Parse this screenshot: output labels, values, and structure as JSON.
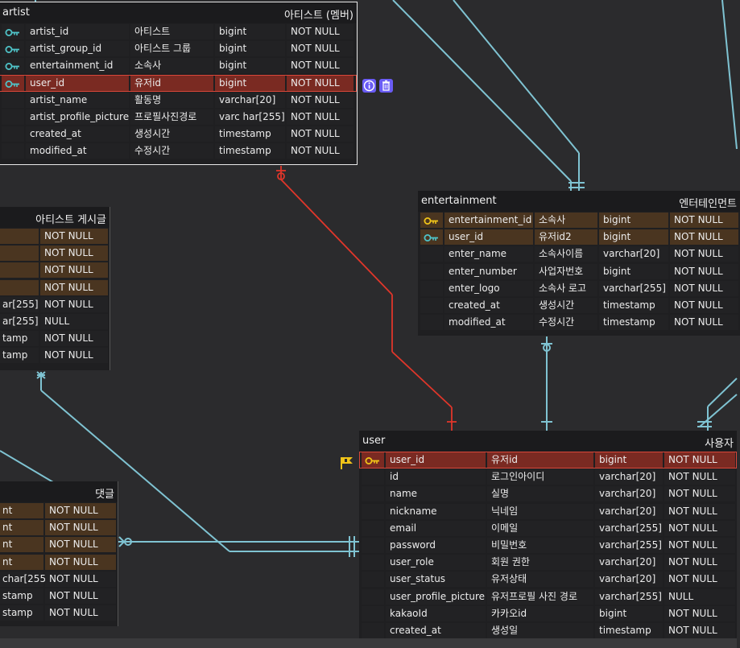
{
  "colors": {
    "background": "#2b2b2d",
    "relation_line": "#7fc3d2",
    "selected_relation_line": "#e0362a",
    "primary_key_row": "#4a3520",
    "selected_row": "#7a2a22",
    "key_icon_gold": "#f0c419",
    "key_icon_teal": "#4fc3c8",
    "tool_icon": "#6a5cf5"
  },
  "tables": {
    "artist": {
      "name": "artist",
      "alias": "아티스트 (멤버)",
      "rows": [
        {
          "col": "artist_id",
          "comment": "아티스트",
          "type": "bigint",
          "null": "NOT NULL",
          "key": "teal"
        },
        {
          "col": "artist_group_id",
          "comment": "아티스트 그룹",
          "type": "bigint",
          "null": "NOT NULL",
          "key": "teal"
        },
        {
          "col": "entertainment_id",
          "comment": "소속사",
          "type": "bigint",
          "null": "NOT NULL",
          "key": "teal"
        },
        {
          "col": "user_id",
          "comment": "유저id",
          "type": "bigint",
          "null": "NOT NULL",
          "key": "teal",
          "selected": true
        },
        {
          "col": "artist_name",
          "comment": "활동명",
          "type": "varchar[20]",
          "null": "NOT NULL"
        },
        {
          "col": "artist_profile_picture",
          "comment": "프로필사진경로",
          "type": "varc har[255]",
          "null": "NOT NULL"
        },
        {
          "col": "created_at",
          "comment": "생성시간",
          "type": "timestamp",
          "null": "NOT NULL"
        },
        {
          "col": "modified_at",
          "comment": "수정시간",
          "type": "timestamp",
          "null": "NOT NULL"
        }
      ]
    },
    "artist_post": {
      "alias": "아티스트 게시글",
      "rows": [
        {
          "type": "",
          "null": "NOT NULL",
          "pk": true
        },
        {
          "type": "",
          "null": "NOT NULL",
          "pk": true
        },
        {
          "type": "",
          "null": "NOT NULL",
          "pk": true
        },
        {
          "type": "",
          "null": "NOT NULL",
          "pk": true
        },
        {
          "type": "ar[255]",
          "null": "NOT NULL"
        },
        {
          "type": "ar[255]",
          "null": "NULL"
        },
        {
          "type": "tamp",
          "null": "NOT NULL"
        },
        {
          "type": "tamp",
          "null": "NOT NULL"
        }
      ]
    },
    "comment": {
      "alias": "댓글",
      "rows": [
        {
          "type": "nt",
          "null": "NOT NULL",
          "pk": true
        },
        {
          "type": "nt",
          "null": "NOT NULL",
          "pk": true
        },
        {
          "type": "nt",
          "null": "NOT NULL",
          "pk": true
        },
        {
          "type": "nt",
          "null": "NOT NULL",
          "pk": true
        },
        {
          "type": "char[255]",
          "null": "NOT NULL"
        },
        {
          "type": "stamp",
          "null": "NOT NULL"
        },
        {
          "type": "stamp",
          "null": "NOT NULL"
        }
      ]
    },
    "entertainment": {
      "name": "entertainment",
      "alias": "엔터테인먼트",
      "rows": [
        {
          "col": "entertainment_id",
          "comment": "소속사",
          "type": "bigint",
          "null": "NOT NULL",
          "key": "gold",
          "pk": true
        },
        {
          "col": "user_id",
          "comment": "유저id2",
          "type": "bigint",
          "null": "NOT NULL",
          "key": "teal",
          "pk": true
        },
        {
          "col": "enter_name",
          "comment": "소속사이름",
          "type": "varchar[20]",
          "null": "NOT NULL"
        },
        {
          "col": "enter_number",
          "comment": "사업자번호",
          "type": "bigint",
          "null": "NOT NULL"
        },
        {
          "col": "enter_logo",
          "comment": "소속사 로고",
          "type": "varchar[255]",
          "null": "NOT NULL"
        },
        {
          "col": "created_at",
          "comment": "생성시간",
          "type": "timestamp",
          "null": "NOT NULL"
        },
        {
          "col": "modified_at",
          "comment": "수정시간",
          "type": "timestamp",
          "null": "NOT NULL"
        }
      ]
    },
    "user": {
      "name": "user",
      "alias": "사용자",
      "rows": [
        {
          "col": "user_id",
          "comment": "유저id",
          "type": "bigint",
          "null": "NOT NULL",
          "key": "gold",
          "selected": true
        },
        {
          "col": "id",
          "comment": "로그인아이디",
          "type": "varchar[20]",
          "null": "NOT NULL"
        },
        {
          "col": "name",
          "comment": "실명",
          "type": "varchar[20]",
          "null": "NOT NULL"
        },
        {
          "col": "nickname",
          "comment": "닉네임",
          "type": "varchar[20]",
          "null": "NOT NULL"
        },
        {
          "col": "email",
          "comment": "이메일",
          "type": "varchar[255]",
          "null": "NOT NULL"
        },
        {
          "col": "password",
          "comment": "비밀번호",
          "type": "varchar[255]",
          "null": "NOT NULL"
        },
        {
          "col": "user_role",
          "comment": "회원 권한",
          "type": "varchar[20]",
          "null": "NOT NULL"
        },
        {
          "col": "user_status",
          "comment": "유저상태",
          "type": "varchar[20]",
          "null": "NOT NULL"
        },
        {
          "col": "user_profile_picture",
          "comment": "유저프로필 사진 경로",
          "type": "varchar[255]",
          "null": "NULL"
        },
        {
          "col": "kakaoId",
          "comment": "카카오id",
          "type": "bigint",
          "null": "NOT NULL"
        },
        {
          "col": "created_at",
          "comment": "생성일",
          "type": "timestamp",
          "null": "NOT NULL"
        }
      ]
    }
  },
  "toolbar_icons": [
    "info-icon",
    "trash-icon"
  ],
  "markers": [
    "flag-icon"
  ]
}
